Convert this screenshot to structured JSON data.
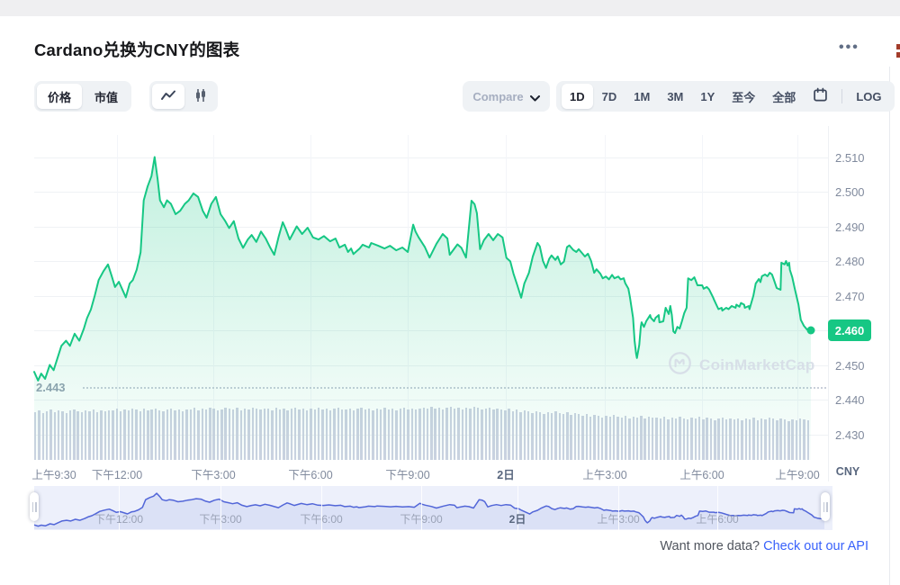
{
  "header": {
    "title": "Cardano兑换为CNY的图表",
    "menu_icon": "ellipsis",
    "menu_label": "•••"
  },
  "toolbar": {
    "metric_tabs": [
      {
        "label": "价格",
        "active": true
      },
      {
        "label": "市值",
        "active": false
      }
    ],
    "chart_type_tabs": [
      {
        "name": "line-chart-icon",
        "active": true
      },
      {
        "name": "candlestick-icon",
        "active": false
      }
    ],
    "compare_label": "Compare",
    "ranges": [
      {
        "label": "1D",
        "active": true
      },
      {
        "label": "7D",
        "active": false
      },
      {
        "label": "1M",
        "active": false
      },
      {
        "label": "3M",
        "active": false
      },
      {
        "label": "1Y",
        "active": false
      },
      {
        "label": "至今",
        "active": false
      },
      {
        "label": "全部",
        "active": false
      }
    ],
    "log_label": "LOG"
  },
  "colors": {
    "accent_green": "#16c784",
    "area_top": "rgba(22,199,132,0.26)",
    "area_bottom": "rgba(22,199,132,0.02)",
    "volume_bar": "#cdd2e2",
    "nav_line": "#5266d8",
    "nav_fill": "#dbe1f6",
    "nav_bg": "#edf0fb",
    "link_blue": "#3861fb",
    "axis_text": "#808a9d"
  },
  "chart_data": {
    "type": "line",
    "title": "Cardano兑换为CNY的图表",
    "currency": "CNY",
    "x_ticks": [
      "上午9:30",
      "下午12:00",
      "下午3:00",
      "下午6:00",
      "下午9:00",
      "2日",
      "上午3:00",
      "上午6:00",
      "上午9:00"
    ],
    "y_ticks": [
      "2.510",
      "2.500",
      "2.490",
      "2.480",
      "2.470",
      "2.460",
      "2.450",
      "2.440",
      "2.430"
    ],
    "y_tick_values": [
      2.51,
      2.5,
      2.49,
      2.48,
      2.47,
      2.46,
      2.45,
      2.44,
      2.43
    ],
    "low_label": "2.443",
    "low_value": 2.443,
    "last_price_label": "2.460",
    "last_price": 2.46,
    "series": [
      [
        0.0,
        2.448
      ],
      [
        0.005,
        2.4455
      ],
      [
        0.009,
        2.4475
      ],
      [
        0.014,
        2.446
      ],
      [
        0.02,
        2.45
      ],
      [
        0.025,
        2.4485
      ],
      [
        0.03,
        2.452
      ],
      [
        0.035,
        2.4555
      ],
      [
        0.041,
        2.457
      ],
      [
        0.046,
        2.4555
      ],
      [
        0.052,
        2.459
      ],
      [
        0.058,
        2.457
      ],
      [
        0.064,
        2.4605
      ],
      [
        0.068,
        2.4635
      ],
      [
        0.073,
        2.466
      ],
      [
        0.078,
        2.47
      ],
      [
        0.083,
        2.4745
      ],
      [
        0.089,
        2.477
      ],
      [
        0.095,
        2.479
      ],
      [
        0.1,
        2.4755
      ],
      [
        0.104,
        2.4725
      ],
      [
        0.109,
        2.474
      ],
      [
        0.114,
        2.4715
      ],
      [
        0.118,
        2.4695
      ],
      [
        0.123,
        2.4735
      ],
      [
        0.127,
        2.4745
      ],
      [
        0.132,
        2.4775
      ],
      [
        0.137,
        2.4825
      ],
      [
        0.141,
        2.4975
      ],
      [
        0.146,
        2.5015
      ],
      [
        0.151,
        2.5045
      ],
      [
        0.155,
        2.51
      ],
      [
        0.159,
        2.5035
      ],
      [
        0.162,
        2.4975
      ],
      [
        0.167,
        2.4955
      ],
      [
        0.171,
        2.4975
      ],
      [
        0.176,
        2.4965
      ],
      [
        0.182,
        2.4935
      ],
      [
        0.188,
        2.4945
      ],
      [
        0.194,
        2.4965
      ],
      [
        0.199,
        2.4975
      ],
      [
        0.205,
        2.4995
      ],
      [
        0.211,
        2.4985
      ],
      [
        0.217,
        2.4945
      ],
      [
        0.222,
        2.4925
      ],
      [
        0.228,
        2.4965
      ],
      [
        0.234,
        2.4985
      ],
      [
        0.24,
        2.4935
      ],
      [
        0.246,
        2.4915
      ],
      [
        0.251,
        2.4895
      ],
      [
        0.257,
        2.4915
      ],
      [
        0.263,
        2.4865
      ],
      [
        0.269,
        2.4838
      ],
      [
        0.275,
        2.4862
      ],
      [
        0.28,
        2.4875
      ],
      [
        0.286,
        2.4855
      ],
      [
        0.292,
        2.4885
      ],
      [
        0.298,
        2.4865
      ],
      [
        0.304,
        2.4838
      ],
      [
        0.309,
        2.4818
      ],
      [
        0.315,
        2.4872
      ],
      [
        0.32,
        2.4912
      ],
      [
        0.324,
        2.4892
      ],
      [
        0.329,
        2.4862
      ],
      [
        0.338,
        2.49
      ],
      [
        0.345,
        2.4878
      ],
      [
        0.352,
        2.4896
      ],
      [
        0.359,
        2.4868
      ],
      [
        0.366,
        2.4862
      ],
      [
        0.373,
        2.4872
      ],
      [
        0.381,
        2.4857
      ],
      [
        0.388,
        2.4865
      ],
      [
        0.393,
        2.4839
      ],
      [
        0.4,
        2.4847
      ],
      [
        0.404,
        2.4826
      ],
      [
        0.408,
        2.4836
      ],
      [
        0.411,
        2.482
      ],
      [
        0.419,
        2.4836
      ],
      [
        0.423,
        2.4847
      ],
      [
        0.431,
        2.4839
      ],
      [
        0.434,
        2.4852
      ],
      [
        0.443,
        2.4844
      ],
      [
        0.451,
        2.4836
      ],
      [
        0.458,
        2.4844
      ],
      [
        0.466,
        2.4831
      ],
      [
        0.474,
        2.4839
      ],
      [
        0.481,
        2.4826
      ],
      [
        0.484,
        2.486
      ],
      [
        0.488,
        2.4905
      ],
      [
        0.491,
        2.4885
      ],
      [
        0.495,
        2.4868
      ],
      [
        0.503,
        2.484
      ],
      [
        0.509,
        2.481
      ],
      [
        0.518,
        2.485
      ],
      [
        0.526,
        2.4878
      ],
      [
        0.532,
        2.4865
      ],
      [
        0.535,
        2.4818
      ],
      [
        0.545,
        2.4848
      ],
      [
        0.55,
        2.4838
      ],
      [
        0.556,
        2.481
      ],
      [
        0.563,
        2.4974
      ],
      [
        0.567,
        2.4964
      ],
      [
        0.57,
        2.4938
      ],
      [
        0.574,
        2.4834
      ],
      [
        0.579,
        2.486
      ],
      [
        0.585,
        2.4878
      ],
      [
        0.591,
        2.486
      ],
      [
        0.597,
        2.4878
      ],
      [
        0.603,
        2.4868
      ],
      [
        0.608,
        2.4809
      ],
      [
        0.613,
        2.4799
      ],
      [
        0.617,
        2.4764
      ],
      [
        0.622,
        2.473
      ],
      [
        0.627,
        2.4694
      ],
      [
        0.631,
        2.4735
      ],
      [
        0.637,
        2.4766
      ],
      [
        0.642,
        2.4813
      ],
      [
        0.648,
        2.4852
      ],
      [
        0.651,
        2.4842
      ],
      [
        0.655,
        2.48
      ],
      [
        0.659,
        2.478
      ],
      [
        0.663,
        2.4806
      ],
      [
        0.666,
        2.4816
      ],
      [
        0.671,
        2.4803
      ],
      [
        0.674,
        2.4813
      ],
      [
        0.678,
        2.479
      ],
      [
        0.682,
        2.4798
      ],
      [
        0.686,
        2.484
      ],
      [
        0.689,
        2.4845
      ],
      [
        0.694,
        2.4832
      ],
      [
        0.698,
        2.4826
      ],
      [
        0.701,
        2.4834
      ],
      [
        0.706,
        2.4821
      ],
      [
        0.709,
        2.4813
      ],
      [
        0.713,
        2.4821
      ],
      [
        0.717,
        2.48
      ],
      [
        0.721,
        2.4766
      ],
      [
        0.724,
        2.4776
      ],
      [
        0.729,
        2.4763
      ],
      [
        0.732,
        2.475
      ],
      [
        0.736,
        2.4755
      ],
      [
        0.74,
        2.4747
      ],
      [
        0.744,
        2.476
      ],
      [
        0.747,
        2.475
      ],
      [
        0.752,
        2.4755
      ],
      [
        0.755,
        2.4747
      ],
      [
        0.759,
        2.475
      ],
      [
        0.761,
        2.4736
      ],
      [
        0.765,
        2.472
      ],
      [
        0.767,
        2.4696
      ],
      [
        0.771,
        2.4636
      ],
      [
        0.773,
        2.457
      ],
      [
        0.775,
        2.4532
      ],
      [
        0.776,
        2.452
      ],
      [
        0.779,
        2.4558
      ],
      [
        0.781,
        2.461
      ],
      [
        0.782,
        2.4623
      ],
      [
        0.785,
        2.461
      ],
      [
        0.788,
        2.4626
      ],
      [
        0.793,
        2.4644
      ],
      [
        0.794,
        2.4636
      ],
      [
        0.798,
        2.4626
      ],
      [
        0.8,
        2.4636
      ],
      [
        0.804,
        2.4644
      ],
      [
        0.805,
        2.4623
      ],
      [
        0.81,
        2.4626
      ],
      [
        0.813,
        2.4665
      ],
      [
        0.817,
        2.4647
      ],
      [
        0.819,
        2.467
      ],
      [
        0.821,
        2.4644
      ],
      [
        0.823,
        2.4597
      ],
      [
        0.825,
        2.4592
      ],
      [
        0.828,
        2.461
      ],
      [
        0.831,
        2.4605
      ],
      [
        0.834,
        2.4626
      ],
      [
        0.837,
        2.465
      ],
      [
        0.84,
        2.4665
      ],
      [
        0.842,
        2.475
      ],
      [
        0.846,
        2.4745
      ],
      [
        0.85,
        2.4753
      ],
      [
        0.854,
        2.473
      ],
      [
        0.86,
        2.473
      ],
      [
        0.862,
        2.472
      ],
      [
        0.866,
        2.4725
      ],
      [
        0.869,
        2.4718
      ],
      [
        0.874,
        2.4695
      ],
      [
        0.875,
        2.469
      ],
      [
        0.879,
        2.467
      ],
      [
        0.881,
        2.4661
      ],
      [
        0.885,
        2.4665
      ],
      [
        0.886,
        2.4657
      ],
      [
        0.891,
        2.4665
      ],
      [
        0.894,
        2.4661
      ],
      [
        0.898,
        2.467
      ],
      [
        0.903,
        2.4665
      ],
      [
        0.904,
        2.4674
      ],
      [
        0.908,
        2.4668
      ],
      [
        0.91,
        2.4679
      ],
      [
        0.914,
        2.4674
      ],
      [
        0.915,
        2.4665
      ],
      [
        0.92,
        2.467
      ],
      [
        0.921,
        2.4661
      ],
      [
        0.926,
        2.47
      ],
      [
        0.929,
        2.4735
      ],
      [
        0.933,
        2.4748
      ],
      [
        0.935,
        2.4739
      ],
      [
        0.937,
        2.4756
      ],
      [
        0.941,
        2.4761
      ],
      [
        0.944,
        2.4756
      ],
      [
        0.947,
        2.4766
      ],
      [
        0.95,
        2.4761
      ],
      [
        0.952,
        2.4748
      ],
      [
        0.956,
        2.4722
      ],
      [
        0.961,
        2.4717
      ],
      [
        0.962,
        2.4795
      ],
      [
        0.966,
        2.479
      ],
      [
        0.968,
        2.48
      ],
      [
        0.97,
        2.4787
      ],
      [
        0.972,
        2.4795
      ],
      [
        0.973,
        2.4774
      ],
      [
        0.976,
        2.4753
      ],
      [
        0.979,
        2.4722
      ],
      [
        0.984,
        2.4674
      ],
      [
        0.987,
        2.463
      ],
      [
        0.991,
        2.4613
      ],
      [
        0.995,
        2.4602
      ],
      [
        1.0,
        2.46
      ]
    ],
    "volume_heights": [
      53,
      55,
      52,
      54,
      56,
      53,
      55,
      54,
      52,
      55,
      56,
      54,
      53,
      55,
      54,
      56,
      53,
      55,
      54,
      55,
      55,
      57,
      54,
      56,
      55,
      57,
      56,
      54,
      57,
      55,
      56,
      57,
      55,
      54,
      56,
      57,
      55,
      56,
      54,
      56,
      56,
      58,
      55,
      57,
      56,
      58,
      57,
      55,
      56,
      58,
      57,
      56,
      58,
      55,
      57,
      56,
      58,
      57,
      56,
      57,
      57,
      55,
      58,
      56,
      57,
      55,
      57,
      58,
      56,
      57,
      55,
      57,
      56,
      58,
      56,
      57,
      55,
      57,
      58,
      56,
      56,
      57,
      55,
      57,
      58,
      56,
      57,
      55,
      57,
      56,
      58,
      56,
      57,
      55,
      57,
      58,
      56,
      57,
      56,
      57,
      58,
      57,
      59,
      57,
      58,
      56,
      58,
      59,
      57,
      58,
      56,
      58,
      57,
      59,
      58,
      56,
      57,
      58,
      56,
      57,
      56,
      55,
      57,
      54,
      56,
      53,
      55,
      54,
      52,
      54,
      53,
      51,
      53,
      52,
      54,
      52,
      51,
      53,
      50,
      52,
      51,
      49,
      51,
      48,
      50,
      49,
      47,
      49,
      48,
      50,
      48,
      47,
      49,
      46,
      48,
      47,
      49,
      46,
      48,
      47,
      47,
      46,
      48,
      45,
      47,
      46,
      48,
      46,
      45,
      47,
      46,
      48,
      45,
      47,
      46,
      44,
      46,
      47,
      45,
      46,
      45,
      46,
      44,
      46,
      45,
      47,
      44,
      46,
      45,
      47,
      46,
      44,
      46,
      45,
      43,
      45,
      44,
      46,
      45,
      44
    ]
  },
  "navigator": {
    "x_ticks": [
      "下午12:00",
      "下午3:00",
      "下午6:00",
      "下午9:00",
      "2日",
      "上午3:00",
      "上午6:00"
    ]
  },
  "watermark": {
    "label": "CoinMarketCap",
    "logo": "coinmarketcap-logo"
  },
  "footer": {
    "prompt": "Want more data?",
    "link_label": "Check out our API"
  }
}
